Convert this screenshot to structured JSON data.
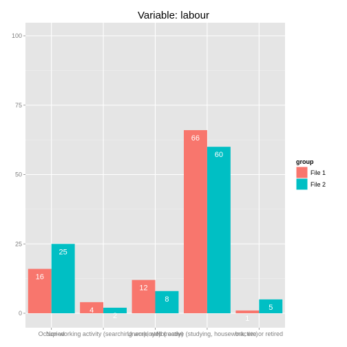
{
  "chart_data": {
    "type": "bar",
    "title": "Variable:  labour",
    "xlabel": "",
    "ylabel": "",
    "categories": [
      "Occupied",
      "Non-working activity (searching work, etc)",
      "Unemployed (ready)",
      "Not active (studying, housework, etc)",
      "Inactive or retired"
    ],
    "series": [
      {
        "name": "File 1",
        "color": "#F8766D",
        "values": [
          16,
          4,
          12,
          66,
          1
        ]
      },
      {
        "name": "File 2",
        "color": "#00BFC4",
        "values": [
          25,
          2,
          8,
          60,
          5
        ]
      }
    ],
    "ylim": [
      0,
      107
    ],
    "yticks": [
      0,
      25,
      50,
      75,
      100
    ],
    "grid": true,
    "legend": {
      "title": "group",
      "position": "right"
    },
    "panel_background": "#E5E5E5",
    "grid_color": "#FFFFFF"
  }
}
